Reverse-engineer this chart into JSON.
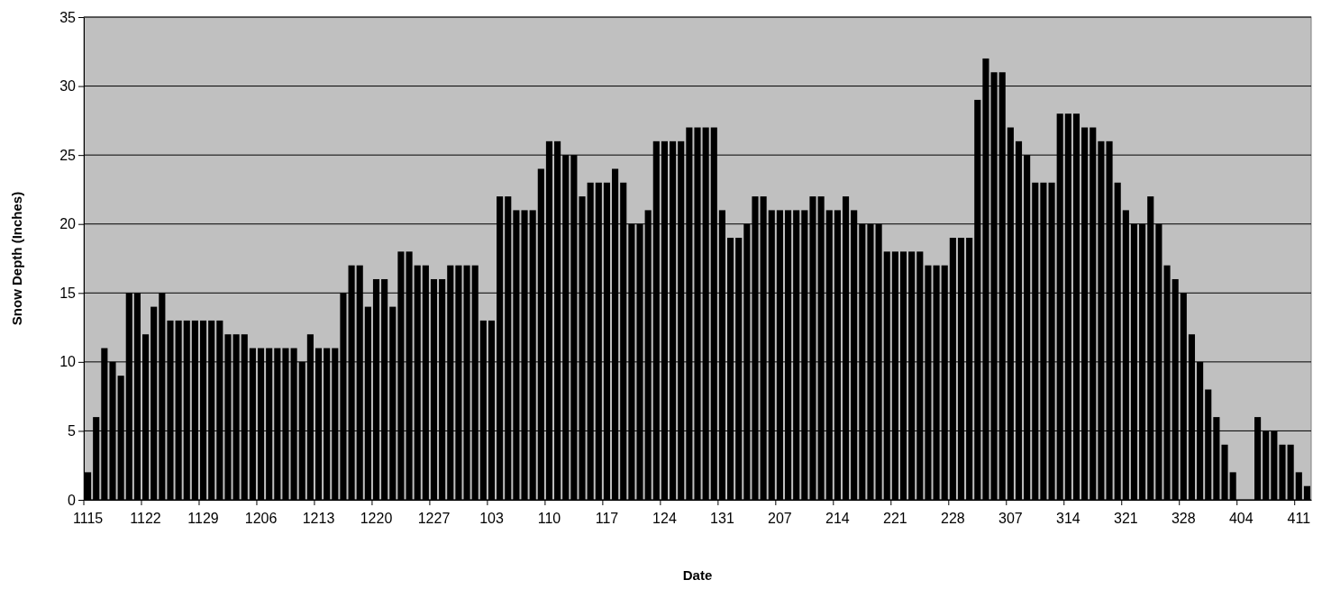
{
  "chart_data": {
    "type": "bar",
    "xlabel": "Date",
    "ylabel": "Snow Depth (Inches)",
    "categories": [
      "1115",
      null,
      null,
      null,
      null,
      null,
      null,
      "1122",
      null,
      null,
      null,
      null,
      null,
      null,
      "1129",
      null,
      null,
      null,
      null,
      null,
      null,
      "1206",
      null,
      null,
      null,
      null,
      null,
      null,
      "1213",
      null,
      null,
      null,
      null,
      null,
      null,
      "1220",
      null,
      null,
      null,
      null,
      null,
      null,
      "1227",
      null,
      null,
      null,
      null,
      null,
      null,
      "103",
      null,
      null,
      null,
      null,
      null,
      null,
      "110",
      null,
      null,
      null,
      null,
      null,
      null,
      "117",
      null,
      null,
      null,
      null,
      null,
      null,
      "124",
      null,
      null,
      null,
      null,
      null,
      null,
      "131",
      null,
      null,
      null,
      null,
      null,
      null,
      "207",
      null,
      null,
      null,
      null,
      null,
      null,
      "214",
      null,
      null,
      null,
      null,
      null,
      null,
      "221",
      null,
      null,
      null,
      null,
      null,
      null,
      "228",
      null,
      null,
      null,
      null,
      null,
      null,
      "307",
      null,
      null,
      null,
      null,
      null,
      null,
      "314",
      null,
      null,
      null,
      null,
      null,
      null,
      "321",
      null,
      null,
      null,
      null,
      null,
      null,
      "328",
      null,
      null,
      null,
      null,
      null,
      null,
      "404",
      null,
      null,
      null,
      null,
      null,
      null,
      "411",
      null
    ],
    "values": [
      2,
      6,
      11,
      10,
      9,
      15,
      15,
      12,
      14,
      15,
      13,
      13,
      13,
      13,
      13,
      13,
      13,
      12,
      12,
      12,
      11,
      11,
      11,
      11,
      11,
      11,
      10,
      12,
      11,
      11,
      11,
      15,
      17,
      17,
      14,
      16,
      16,
      14,
      18,
      18,
      17,
      17,
      16,
      16,
      17,
      17,
      17,
      17,
      13,
      13,
      22,
      22,
      21,
      21,
      21,
      24,
      26,
      26,
      25,
      25,
      22,
      23,
      23,
      23,
      24,
      23,
      20,
      20,
      21,
      26,
      26,
      26,
      26,
      27,
      27,
      27,
      27,
      21,
      19,
      19,
      20,
      22,
      22,
      21,
      21,
      21,
      21,
      21,
      22,
      22,
      21,
      21,
      22,
      21,
      20,
      20,
      20,
      18,
      18,
      18,
      18,
      18,
      17,
      17,
      17,
      19,
      19,
      19,
      29,
      32,
      31,
      31,
      27,
      26,
      25,
      23,
      23,
      23,
      28,
      28,
      28,
      27,
      27,
      26,
      26,
      23,
      21,
      20,
      20,
      22,
      20,
      17,
      16,
      15,
      12,
      10,
      8,
      6,
      4,
      2,
      0,
      0,
      6,
      5,
      5,
      4,
      4,
      2,
      1
    ],
    "color": "#000000",
    "ylim": [
      0,
      35
    ],
    "yticks": [
      0,
      5,
      10,
      15,
      20,
      25,
      30,
      35
    ],
    "grid": "y"
  }
}
